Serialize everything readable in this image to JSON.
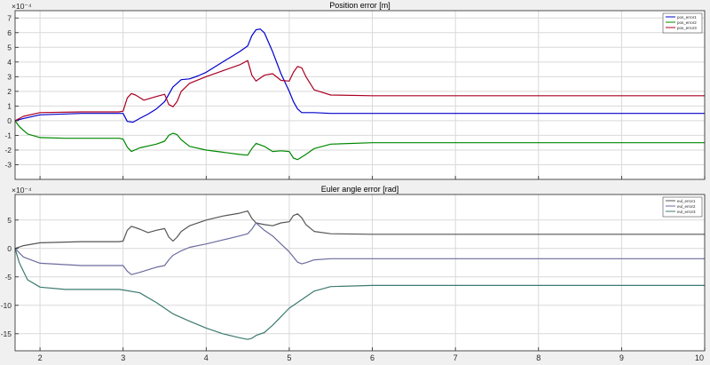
{
  "figure": {
    "background": "#f0f0f0",
    "axes_background": "#ffffff",
    "grid_color": "#d9d9d9"
  },
  "chart_data": [
    {
      "type": "line",
      "title": "Position error [m]",
      "xlabel": "",
      "ylabel": "",
      "exponent_label": "×10⁻⁴",
      "xlim": [
        1.7,
        10
      ],
      "ylim": [
        -4,
        7.5
      ],
      "xticks": [
        2,
        3,
        4,
        5,
        6,
        7,
        8,
        9,
        10
      ],
      "yticks": [
        -3,
        -2,
        -1,
        0,
        1,
        2,
        3,
        4,
        5,
        6,
        7
      ],
      "grid": true,
      "legend_position": "top-right",
      "series": [
        {
          "name": "pos_error1",
          "color": "#0000cc",
          "x": [
            1.7,
            1.8,
            2.0,
            2.5,
            2.95,
            3.0,
            3.05,
            3.12,
            3.2,
            3.3,
            3.4,
            3.5,
            3.6,
            3.7,
            3.8,
            3.9,
            4.0,
            4.2,
            4.4,
            4.5,
            4.55,
            4.6,
            4.65,
            4.7,
            4.8,
            4.9,
            5.0,
            5.05,
            5.1,
            5.15,
            5.2,
            5.3,
            5.5,
            6,
            7,
            8,
            9,
            10
          ],
          "y": [
            0,
            0.15,
            0.4,
            0.5,
            0.5,
            0.5,
            -0.05,
            -0.1,
            0.15,
            0.45,
            0.8,
            1.3,
            2.3,
            2.8,
            2.85,
            3.05,
            3.3,
            4.0,
            4.7,
            5.1,
            5.8,
            6.2,
            6.25,
            6.0,
            4.7,
            3.2,
            2.0,
            1.3,
            0.8,
            0.55,
            0.55,
            0.55,
            0.5,
            0.5,
            0.5,
            0.5,
            0.5,
            0.5
          ]
        },
        {
          "name": "pos_error2",
          "color": "#008800",
          "x": [
            1.7,
            1.75,
            1.85,
            2.0,
            2.3,
            2.95,
            3.0,
            3.05,
            3.1,
            3.2,
            3.4,
            3.5,
            3.55,
            3.6,
            3.65,
            3.7,
            3.8,
            4.0,
            4.2,
            4.4,
            4.5,
            4.55,
            4.6,
            4.7,
            4.8,
            4.9,
            5.0,
            5.05,
            5.1,
            5.2,
            5.3,
            5.5,
            6,
            7,
            8,
            9,
            10
          ],
          "y": [
            0,
            -0.4,
            -0.9,
            -1.15,
            -1.2,
            -1.2,
            -1.25,
            -1.8,
            -2.1,
            -1.85,
            -1.6,
            -1.4,
            -1.0,
            -0.85,
            -0.95,
            -1.3,
            -1.75,
            -2.0,
            -2.15,
            -2.3,
            -2.35,
            -1.9,
            -1.55,
            -1.75,
            -2.1,
            -2.05,
            -2.1,
            -2.55,
            -2.65,
            -2.3,
            -1.9,
            -1.6,
            -1.5,
            -1.5,
            -1.5,
            -1.5,
            -1.5
          ]
        },
        {
          "name": "pos_error3",
          "color": "#aa0022",
          "x": [
            1.7,
            1.8,
            2.0,
            2.5,
            2.95,
            3.0,
            3.05,
            3.1,
            3.15,
            3.25,
            3.4,
            3.5,
            3.55,
            3.6,
            3.65,
            3.7,
            3.8,
            4.0,
            4.2,
            4.4,
            4.5,
            4.55,
            4.6,
            4.7,
            4.8,
            4.9,
            5.0,
            5.05,
            5.1,
            5.15,
            5.2,
            5.3,
            5.5,
            6,
            7,
            8,
            9,
            10
          ],
          "y": [
            0,
            0.3,
            0.55,
            0.6,
            0.6,
            0.65,
            1.55,
            1.85,
            1.75,
            1.4,
            1.65,
            1.8,
            1.1,
            0.95,
            1.3,
            2.0,
            2.55,
            3.0,
            3.4,
            3.8,
            4.1,
            3.1,
            2.7,
            3.1,
            3.2,
            2.75,
            2.7,
            3.3,
            3.7,
            3.6,
            3.0,
            2.1,
            1.75,
            1.7,
            1.7,
            1.7,
            1.7,
            1.7
          ]
        }
      ]
    },
    {
      "type": "line",
      "title": "Euler angle error [rad]",
      "xlabel": "",
      "ylabel": "",
      "exponent_label": "×10⁻⁴",
      "xlim": [
        1.7,
        10
      ],
      "ylim": [
        -18,
        9.5
      ],
      "xticks": [
        2,
        3,
        4,
        5,
        6,
        7,
        8,
        9,
        10
      ],
      "yticks": [
        -15,
        -10,
        -5,
        0,
        5
      ],
      "grid": true,
      "legend_position": "top-right",
      "series": [
        {
          "name": "eul_error1",
          "color": "#555555",
          "x": [
            1.7,
            1.8,
            2.0,
            2.5,
            2.95,
            3.0,
            3.05,
            3.1,
            3.2,
            3.3,
            3.4,
            3.5,
            3.55,
            3.6,
            3.65,
            3.7,
            3.8,
            4.0,
            4.2,
            4.4,
            4.5,
            4.55,
            4.6,
            4.7,
            4.8,
            4.9,
            5.0,
            5.05,
            5.1,
            5.15,
            5.2,
            5.3,
            5.5,
            6,
            7,
            8,
            9,
            10
          ],
          "y": [
            0,
            0.5,
            1.0,
            1.2,
            1.2,
            1.3,
            3.2,
            3.9,
            3.4,
            2.8,
            3.2,
            3.5,
            2.0,
            1.3,
            2.0,
            3.0,
            4.0,
            5.0,
            5.7,
            6.2,
            6.6,
            5.3,
            4.5,
            4.2,
            4.0,
            4.5,
            4.7,
            5.8,
            6.1,
            5.4,
            4.2,
            3.0,
            2.6,
            2.5,
            2.5,
            2.5,
            2.5,
            2.5
          ]
        },
        {
          "name": "eul_error2",
          "color": "#6b6b9e",
          "x": [
            1.7,
            1.8,
            2.0,
            2.5,
            2.95,
            3.0,
            3.05,
            3.1,
            3.2,
            3.4,
            3.5,
            3.55,
            3.6,
            3.7,
            3.8,
            4.0,
            4.2,
            4.4,
            4.5,
            4.55,
            4.6,
            4.7,
            4.8,
            4.9,
            5.0,
            5.05,
            5.1,
            5.15,
            5.2,
            5.3,
            5.5,
            6,
            7,
            8,
            9,
            10
          ],
          "y": [
            0,
            -1.5,
            -2.6,
            -3.0,
            -3.0,
            -3.0,
            -4.0,
            -4.6,
            -4.2,
            -3.3,
            -3.0,
            -2.0,
            -1.2,
            -0.4,
            0.2,
            0.8,
            1.5,
            2.2,
            2.6,
            3.4,
            4.5,
            3.2,
            2.2,
            0.8,
            -0.6,
            -1.5,
            -2.4,
            -2.7,
            -2.5,
            -2.0,
            -1.8,
            -1.8,
            -1.8,
            -1.8,
            -1.8,
            -1.8
          ]
        },
        {
          "name": "eul_error3",
          "color": "#3c7a70",
          "x": [
            1.7,
            1.75,
            1.85,
            2.0,
            2.3,
            2.95,
            3.0,
            3.2,
            3.4,
            3.6,
            3.8,
            4.0,
            4.2,
            4.4,
            4.5,
            4.55,
            4.6,
            4.7,
            4.8,
            4.9,
            5.0,
            5.1,
            5.3,
            5.5,
            6,
            7,
            8,
            9,
            10
          ],
          "y": [
            0,
            -2.5,
            -5.5,
            -6.8,
            -7.2,
            -7.2,
            -7.3,
            -7.8,
            -9.5,
            -11.5,
            -12.8,
            -14.0,
            -15.0,
            -15.7,
            -16.0,
            -15.8,
            -15.3,
            -14.8,
            -13.5,
            -12.0,
            -10.5,
            -9.5,
            -7.5,
            -6.7,
            -6.5,
            -6.5,
            -6.5,
            -6.5,
            -6.5
          ]
        }
      ]
    }
  ]
}
